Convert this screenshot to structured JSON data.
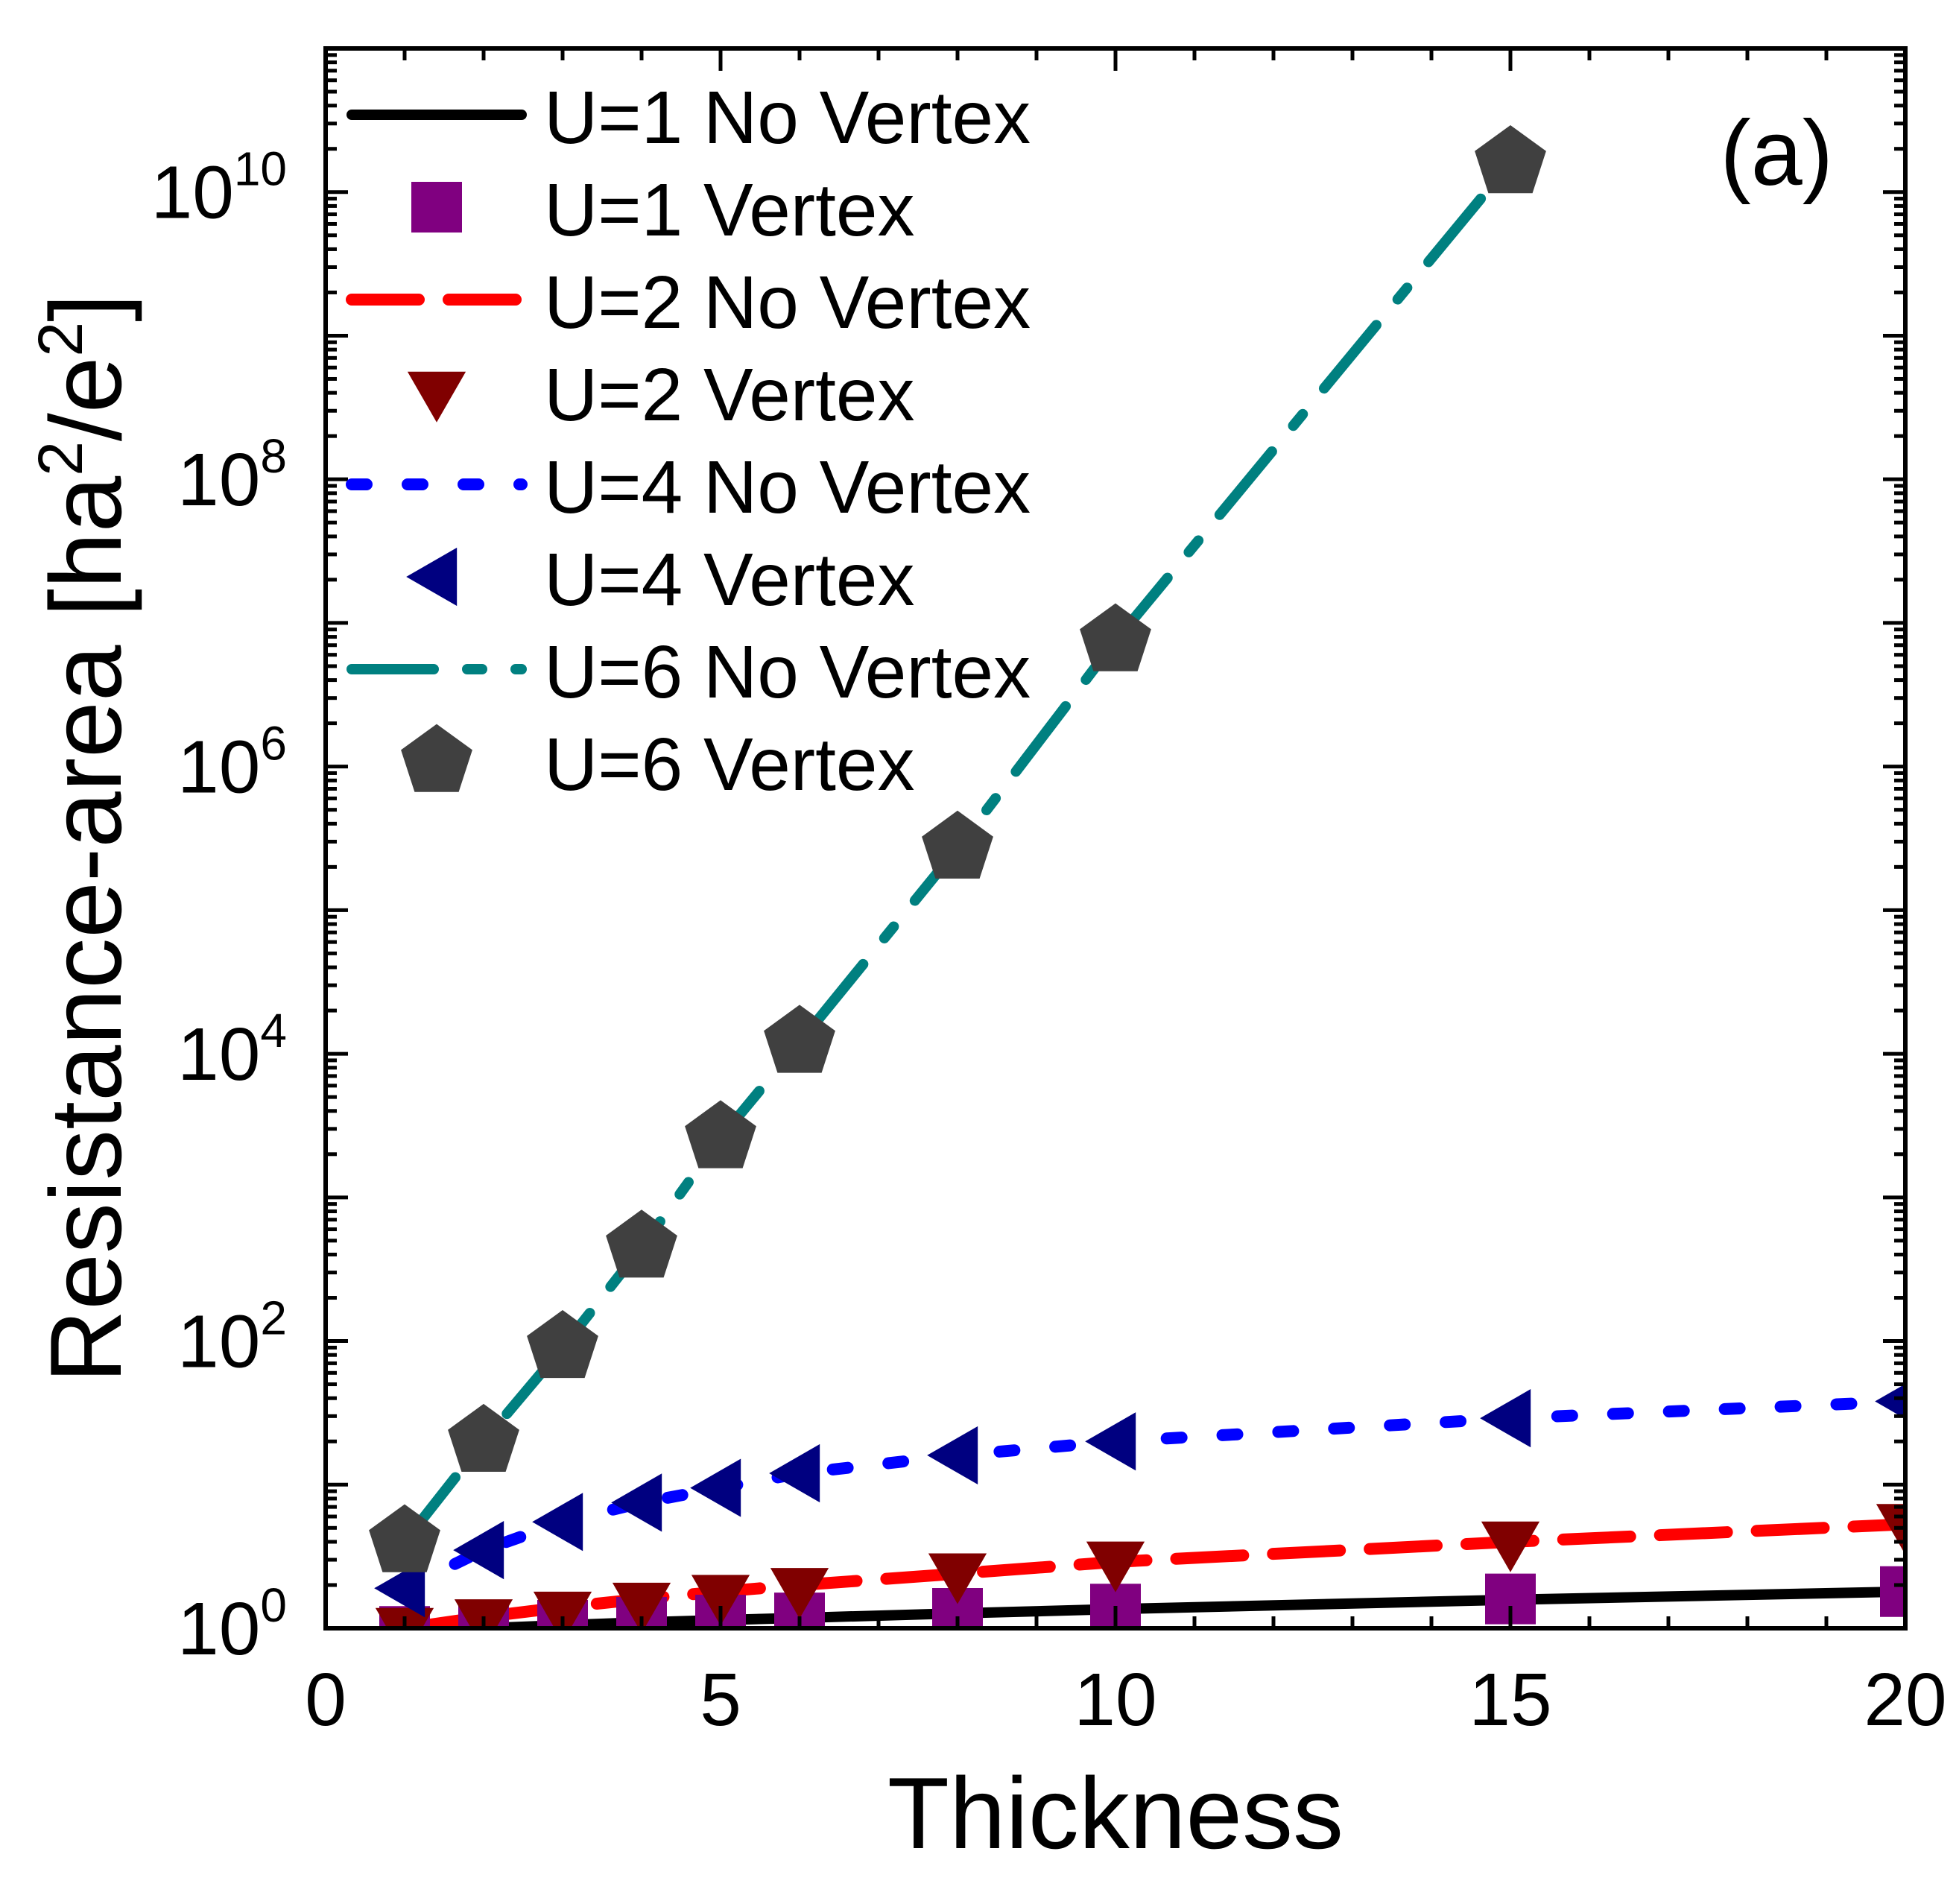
{
  "chart_data": {
    "type": "line",
    "panel_label": "(a)",
    "xlabel": "Thickness",
    "ylabel": "Resistance-area [ha²/e²]",
    "ylabel_parts": {
      "main": "Resistance-area [ha",
      "sup1": "2",
      "mid": "/e",
      "sup2": "2",
      "end": "]"
    },
    "xlim": [
      0,
      20
    ],
    "ylim": [
      1,
      100000000000.0
    ],
    "yscale": "log",
    "grid": false,
    "legend_position": "top-left",
    "x_ticks": [
      {
        "value": 0,
        "label": "0"
      },
      {
        "value": 5,
        "label": "5"
      },
      {
        "value": 10,
        "label": "10"
      },
      {
        "value": 15,
        "label": "15"
      },
      {
        "value": 20,
        "label": "20"
      }
    ],
    "y_ticks": [
      {
        "value": 1,
        "base": "10",
        "exp": "0"
      },
      {
        "value": 100,
        "base": "10",
        "exp": "2"
      },
      {
        "value": 10000,
        "base": "10",
        "exp": "4"
      },
      {
        "value": 1000000,
        "base": "10",
        "exp": "6"
      },
      {
        "value": 100000000,
        "base": "10",
        "exp": "8"
      },
      {
        "value": 10000000000,
        "base": "10",
        "exp": "10"
      }
    ],
    "series": [
      {
        "name": "U=1 No Vertex",
        "style": "solid",
        "color": "#000000",
        "x": [
          1,
          2,
          3,
          4,
          5,
          6,
          8,
          10,
          15,
          20
        ],
        "y": [
          0.95,
          1.0,
          1.05,
          1.1,
          1.14,
          1.18,
          1.27,
          1.36,
          1.58,
          1.8
        ]
      },
      {
        "name": "U=1 Vertex",
        "marker": "square",
        "color": "#800080",
        "x": [
          1,
          2,
          3,
          4,
          5,
          6,
          8,
          10,
          15,
          20
        ],
        "y": [
          0.95,
          1.0,
          1.05,
          1.1,
          1.14,
          1.18,
          1.27,
          1.36,
          1.6,
          1.8
        ]
      },
      {
        "name": "U=2 No Vertex",
        "style": "dash",
        "color": "#ff0000",
        "x": [
          1,
          2,
          3,
          4,
          5,
          6,
          8,
          10,
          15,
          20
        ],
        "y": [
          1.0,
          1.2,
          1.4,
          1.6,
          1.8,
          2.0,
          2.4,
          2.9,
          4.0,
          5.3
        ]
      },
      {
        "name": "U=2 Vertex",
        "marker": "triangle-down",
        "color": "#800000",
        "x": [
          1,
          2,
          3,
          4,
          5,
          6,
          8,
          10,
          15,
          20
        ],
        "y": [
          1.0,
          1.15,
          1.3,
          1.5,
          1.7,
          1.9,
          2.4,
          2.9,
          4.0,
          5.3
        ]
      },
      {
        "name": "U=4 No Vertex",
        "style": "dot",
        "color": "#0000ff",
        "x": [
          1,
          2,
          3,
          4,
          5,
          6,
          8,
          10,
          15,
          20
        ],
        "y": [
          1.9,
          3.5,
          5.5,
          7.5,
          9.5,
          12,
          16,
          20,
          29,
          38
        ]
      },
      {
        "name": "U=4 Vertex",
        "marker": "triangle-left",
        "color": "#000080",
        "x": [
          1,
          2,
          3,
          4,
          5,
          6,
          8,
          10,
          15,
          20
        ],
        "y": [
          1.9,
          3.5,
          5.5,
          7.5,
          9.5,
          12,
          16,
          20,
          29,
          38
        ]
      },
      {
        "name": "U=6 No Vertex",
        "style": "dashdot",
        "color": "#008080",
        "x": [
          1,
          2,
          3,
          4,
          5,
          6,
          8,
          10,
          15
        ],
        "y": [
          4,
          20,
          90,
          450,
          2600,
          12000,
          270000,
          7500000,
          16000000000
        ]
      },
      {
        "name": "U=6 Vertex",
        "marker": "pentagon",
        "color": "#404040",
        "x": [
          1,
          2,
          3,
          4,
          5,
          6,
          8,
          10,
          15
        ],
        "y": [
          4,
          20,
          90,
          450,
          2600,
          12000,
          270000,
          7500000,
          16000000000
        ]
      }
    ]
  }
}
